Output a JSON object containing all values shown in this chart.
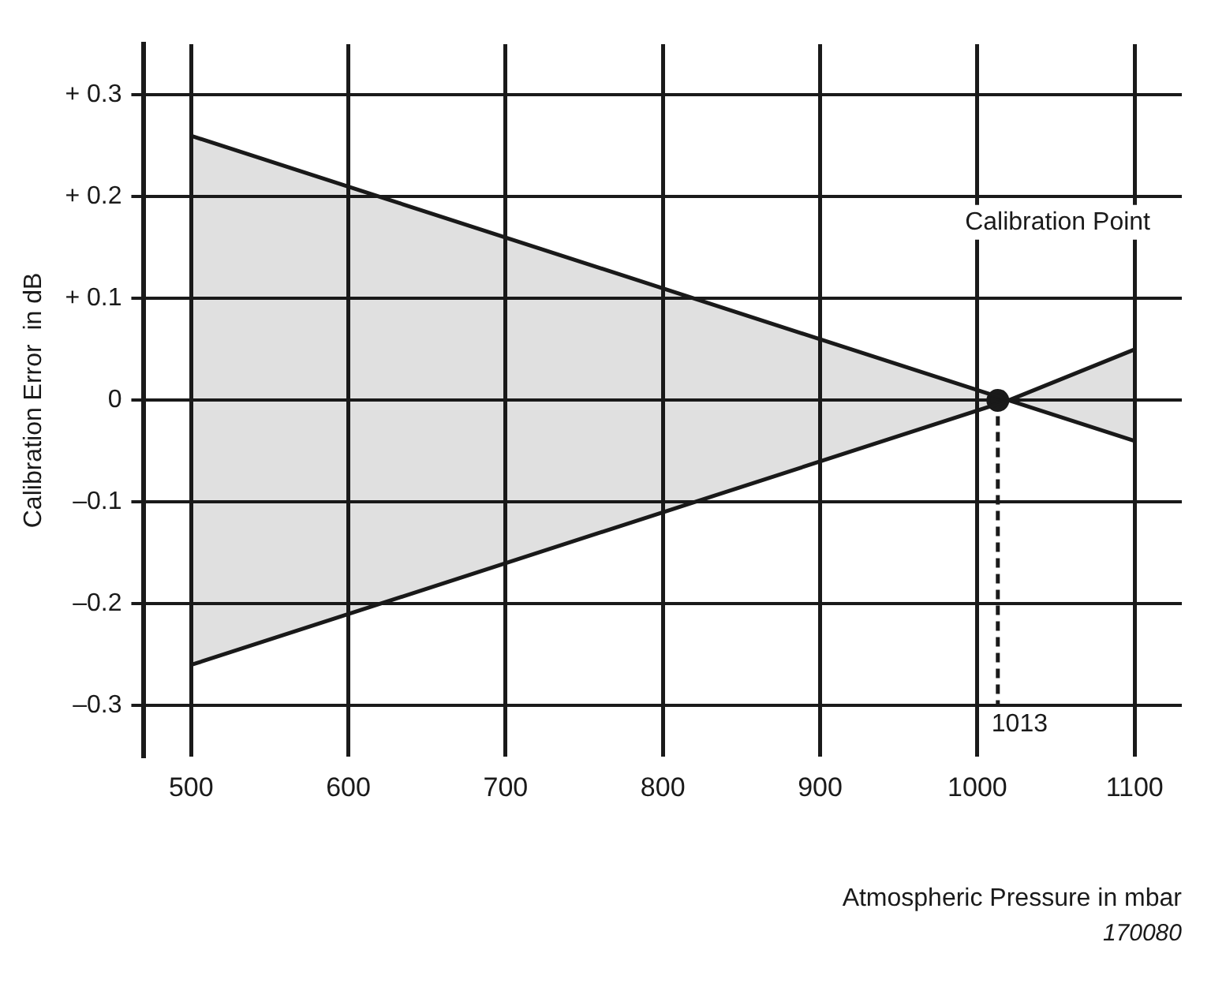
{
  "chart_data": {
    "type": "line",
    "xlabel": "Atmospheric Pressure in mbar",
    "ylabel": "Calibration Error  in dB",
    "xlim": [
      470,
      1130
    ],
    "ylim": [
      -0.35,
      0.35
    ],
    "xticks": [
      500,
      600,
      700,
      800,
      900,
      1000,
      1100
    ],
    "yticks": [
      {
        "value": -0.3,
        "label": "–0.3"
      },
      {
        "value": -0.2,
        "label": "–0.2"
      },
      {
        "value": -0.1,
        "label": "–0.1"
      },
      0,
      {
        "value": 0.1,
        "label": "+ 0.1"
      },
      {
        "value": 0.2,
        "label": "+ 0.2"
      },
      {
        "value": 0.3,
        "label": "+ 0.3"
      }
    ],
    "grid": true,
    "legend": false,
    "marker": "none",
    "series": [
      {
        "color": "#1a1a1a",
        "x": [
          500,
          1020,
          1100
        ],
        "values": [
          0.26,
          0,
          -0.04
        ],
        "lower": [
          -0.26,
          0,
          -0.04
        ],
        "upper": [
          0.26,
          0,
          0.05
        ]
      },
      {
        "color": "#1a1a1a",
        "x": [
          500,
          1020,
          1100
        ],
        "values": [
          -0.26,
          0,
          0.05
        ]
      },
      {
        "color": "#1a1a1a",
        "line_style": "dashed",
        "x": [
          1013,
          1013
        ],
        "values": [
          0,
          -0.3
        ]
      },
      {
        "type": "scatter",
        "color": "#1a1a1a",
        "marker": "circle",
        "x": [
          1013
        ],
        "values": [
          0
        ]
      }
    ],
    "annotations": [
      "Calibration Point",
      {
        "text": "1013",
        "x": 1013,
        "y": -0.3
      },
      "170080"
    ]
  }
}
